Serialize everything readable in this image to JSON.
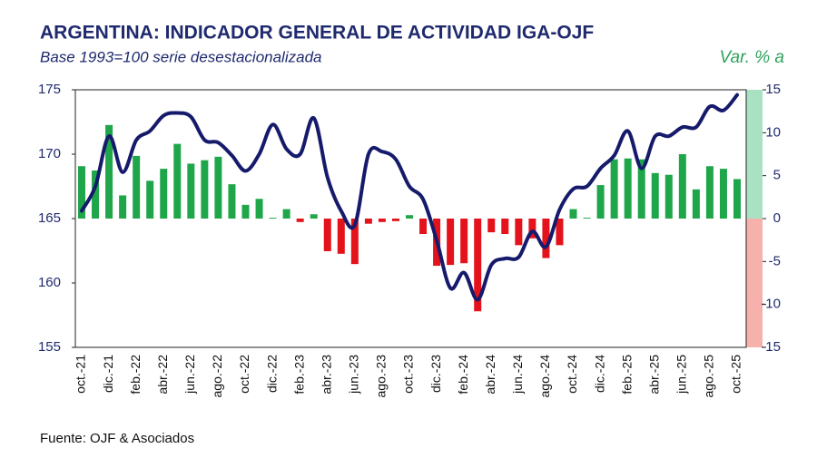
{
  "chart_data": {
    "type": "combo",
    "title": "ARGENTINA: INDICADOR GENERAL DE ACTIVIDAD IGA-OJF",
    "subtitle": "Base 1993=100 serie desestacionalizada",
    "y2_label": "Var. % a",
    "source": "Fuente: OJF & Asociados",
    "categories": [
      "oct.-21",
      null,
      "dic.-21",
      null,
      "feb.-22",
      null,
      "abr.-22",
      null,
      "jun.-22",
      null,
      "ago.-22",
      null,
      "oct.-22",
      null,
      "dic.-22",
      null,
      "feb.-23",
      null,
      "abr.-23",
      null,
      "jun.-23",
      null,
      "ago.-23",
      null,
      "oct.-23",
      null,
      "dic.-23",
      null,
      "feb.-24",
      null,
      "abr.-24",
      null,
      "jun.-24",
      null,
      "ago.-24",
      null,
      "oct.-24",
      null,
      "dic.-24",
      null,
      "feb.-25",
      null,
      "abr.-25",
      null,
      "jun.-25",
      null,
      "ago.-25",
      null,
      "oct.-25"
    ],
    "series": [
      {
        "type": "bar",
        "axis": "y2",
        "color": "#1fa64a",
        "negative_color": "#e3121b",
        "values": [
          6.1,
          5.6,
          10.9,
          2.7,
          7.3,
          4.4,
          5.8,
          8.7,
          6.4,
          6.8,
          7.2,
          4.0,
          1.6,
          2.3,
          0.1,
          1.1,
          -0.4,
          0.5,
          -3.8,
          -4.1,
          -5.3,
          -0.6,
          -0.4,
          -0.3,
          0.4,
          -1.8,
          -5.5,
          -5.4,
          -5.2,
          -10.8,
          -1.6,
          -1.8,
          -3.1,
          -2.3,
          -4.6,
          -3.1,
          1.1,
          0.1,
          3.9,
          6.9,
          7.0,
          6.9,
          5.3,
          5.1,
          7.5,
          3.4,
          6.1,
          5.8,
          4.6
        ]
      },
      {
        "type": "line",
        "color": "#161a6b",
        "values": [
          165.6,
          167.5,
          171.4,
          168.6,
          171.1,
          171.8,
          173.0,
          173.2,
          172.9,
          171.1,
          170.9,
          169.9,
          168.7,
          170.0,
          172.3,
          170.4,
          170.0,
          172.8,
          168.2,
          165.6,
          164.5,
          170.0,
          170.2,
          169.6,
          167.5,
          166.5,
          163.3,
          159.6,
          160.8,
          158.7,
          161.4,
          161.9,
          162.0,
          164.0,
          162.8,
          165.7,
          167.3,
          167.5,
          168.9,
          169.9,
          171.8,
          168.9,
          171.4,
          171.4,
          172.1,
          172.1,
          173.7,
          173.4,
          174.6
        ]
      }
    ],
    "ylim": [
      155,
      175
    ],
    "yticks": [
      155,
      160,
      165,
      170,
      175
    ],
    "y2lim": [
      -15,
      15
    ],
    "y2ticks": [
      -15,
      -10,
      -5,
      0,
      5,
      10,
      15
    ],
    "y2_positive_band": "#a9e2c3",
    "y2_negative_band": "#f7b1ad"
  }
}
